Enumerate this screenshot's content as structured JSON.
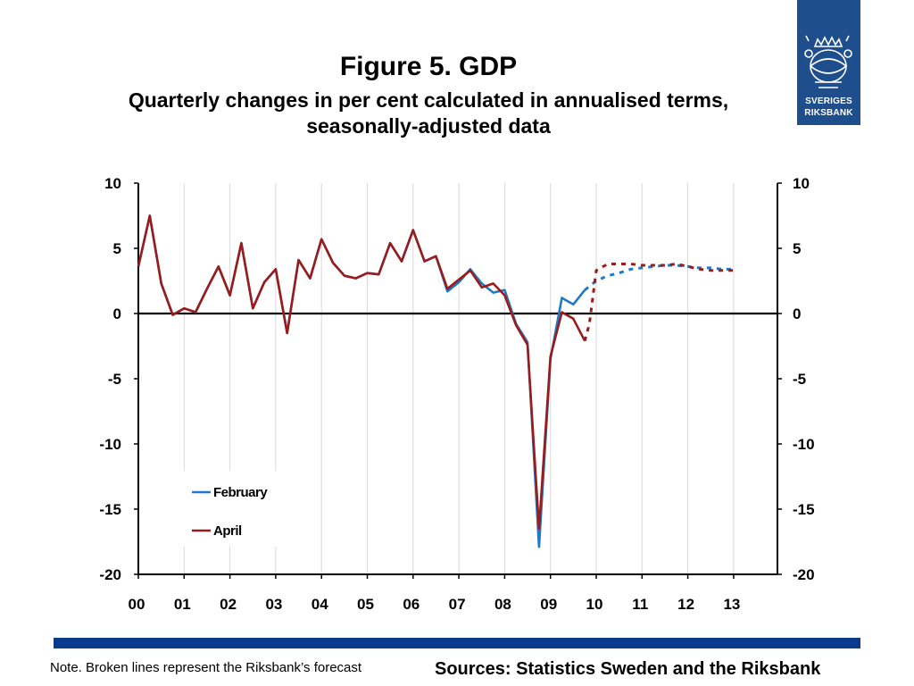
{
  "title": "Figure 5. GDP",
  "subtitle_line1": "Quarterly changes in per cent calculated in annualised terms,",
  "subtitle_line2": "seasonally-adjusted data",
  "logo": {
    "line1": "SVERIGES",
    "line2": "RIKSBANK"
  },
  "note": "Note. Broken lines represent the Riksbank’s forecast",
  "sources": "Sources: Statistics Sweden and the Riksbank",
  "colors": {
    "february": "#1f78c8",
    "april": "#9b1b1b",
    "footer_bar": "#0a3a8c",
    "logo_bg": "#1f4e8c"
  },
  "chart_data": {
    "type": "line",
    "title": "Figure 5. GDP",
    "subtitle": "Quarterly changes in per cent calculated in annualised terms, seasonally-adjusted data",
    "xlabel": "",
    "ylabel": "",
    "ylim": [
      -20,
      10
    ],
    "yticks": [
      10,
      5,
      0,
      -5,
      -10,
      -15,
      -20
    ],
    "secondary_y_axis": true,
    "x_tick_labels": [
      "00",
      "01",
      "02",
      "03",
      "04",
      "05",
      "06",
      "07",
      "08",
      "09",
      "10",
      "11",
      "12",
      "13"
    ],
    "grid": "vertical",
    "legend_position": "bottom-left",
    "series": [
      {
        "name": "February",
        "color": "#1f78c8",
        "actual": [
          [
            2000.0,
            3.6
          ],
          [
            2000.25,
            7.5
          ],
          [
            2000.5,
            2.3
          ],
          [
            2000.75,
            -0.1
          ],
          [
            2001.0,
            0.4
          ],
          [
            2001.25,
            0.1
          ],
          [
            2001.5,
            1.9
          ],
          [
            2001.75,
            3.6
          ],
          [
            2002.0,
            1.4
          ],
          [
            2002.25,
            5.4
          ],
          [
            2002.5,
            0.4
          ],
          [
            2002.75,
            2.4
          ],
          [
            2003.0,
            3.4
          ],
          [
            2003.25,
            -1.5
          ],
          [
            2003.5,
            4.1
          ],
          [
            2003.75,
            2.7
          ],
          [
            2004.0,
            5.7
          ],
          [
            2004.25,
            3.9
          ],
          [
            2004.5,
            2.9
          ],
          [
            2004.75,
            2.7
          ],
          [
            2005.0,
            3.1
          ],
          [
            2005.25,
            3.0
          ],
          [
            2005.5,
            5.4
          ],
          [
            2005.75,
            4.0
          ],
          [
            2006.0,
            6.4
          ],
          [
            2006.25,
            4.0
          ],
          [
            2006.5,
            4.4
          ],
          [
            2006.75,
            1.7
          ],
          [
            2007.0,
            2.4
          ],
          [
            2007.25,
            3.4
          ],
          [
            2007.5,
            2.3
          ],
          [
            2007.75,
            1.6
          ],
          [
            2008.0,
            1.8
          ],
          [
            2008.25,
            -0.8
          ],
          [
            2008.5,
            -2.2
          ],
          [
            2008.75,
            -17.9
          ],
          [
            2009.0,
            -3.5
          ],
          [
            2009.25,
            1.2
          ],
          [
            2009.5,
            0.7
          ],
          [
            2009.75,
            1.8
          ]
        ],
        "forecast": [
          [
            2009.75,
            1.8
          ],
          [
            2010.0,
            2.5
          ],
          [
            2010.25,
            2.9
          ],
          [
            2010.5,
            3.1
          ],
          [
            2010.75,
            3.4
          ],
          [
            2011.0,
            3.5
          ],
          [
            2011.25,
            3.6
          ],
          [
            2011.5,
            3.7
          ],
          [
            2011.75,
            3.7
          ],
          [
            2012.0,
            3.6
          ],
          [
            2012.25,
            3.5
          ],
          [
            2012.5,
            3.5
          ],
          [
            2012.75,
            3.4
          ],
          [
            2013.0,
            3.4
          ]
        ]
      },
      {
        "name": "April",
        "color": "#9b1b1b",
        "actual": [
          [
            2000.0,
            3.6
          ],
          [
            2000.25,
            7.5
          ],
          [
            2000.5,
            2.3
          ],
          [
            2000.75,
            -0.1
          ],
          [
            2001.0,
            0.4
          ],
          [
            2001.25,
            0.1
          ],
          [
            2001.5,
            1.9
          ],
          [
            2001.75,
            3.6
          ],
          [
            2002.0,
            1.4
          ],
          [
            2002.25,
            5.4
          ],
          [
            2002.5,
            0.4
          ],
          [
            2002.75,
            2.4
          ],
          [
            2003.0,
            3.4
          ],
          [
            2003.25,
            -1.5
          ],
          [
            2003.5,
            4.1
          ],
          [
            2003.75,
            2.7
          ],
          [
            2004.0,
            5.7
          ],
          [
            2004.25,
            3.9
          ],
          [
            2004.5,
            2.9
          ],
          [
            2004.75,
            2.7
          ],
          [
            2005.0,
            3.1
          ],
          [
            2005.25,
            3.0
          ],
          [
            2005.5,
            5.4
          ],
          [
            2005.75,
            4.0
          ],
          [
            2006.0,
            6.4
          ],
          [
            2006.25,
            4.0
          ],
          [
            2006.5,
            4.4
          ],
          [
            2006.75,
            1.9
          ],
          [
            2007.0,
            2.6
          ],
          [
            2007.25,
            3.3
          ],
          [
            2007.5,
            2.0
          ],
          [
            2007.75,
            2.3
          ],
          [
            2008.0,
            1.4
          ],
          [
            2008.25,
            -0.9
          ],
          [
            2008.5,
            -2.4
          ],
          [
            2008.75,
            -16.5
          ],
          [
            2009.0,
            -3.3
          ],
          [
            2009.25,
            0.1
          ],
          [
            2009.5,
            -0.4
          ],
          [
            2009.75,
            -2.1
          ]
        ],
        "forecast": [
          [
            2009.75,
            -2.1
          ],
          [
            2009.85,
            -0.8
          ],
          [
            2010.0,
            3.3
          ],
          [
            2010.25,
            3.8
          ],
          [
            2010.5,
            3.8
          ],
          [
            2010.75,
            3.8
          ],
          [
            2011.0,
            3.7
          ],
          [
            2011.25,
            3.7
          ],
          [
            2011.5,
            3.7
          ],
          [
            2011.75,
            3.8
          ],
          [
            2012.0,
            3.6
          ],
          [
            2012.25,
            3.4
          ],
          [
            2012.5,
            3.3
          ],
          [
            2012.75,
            3.3
          ],
          [
            2013.0,
            3.3
          ]
        ]
      }
    ]
  }
}
